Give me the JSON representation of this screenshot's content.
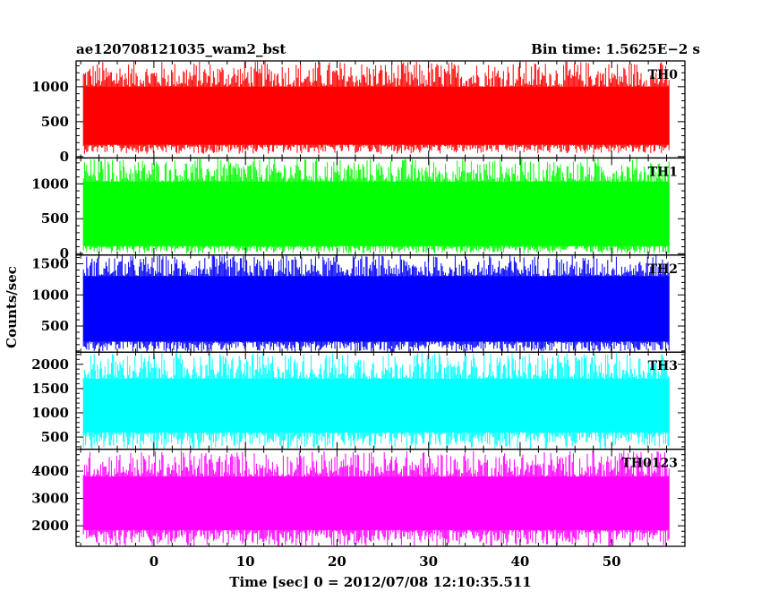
{
  "chart_data": {
    "type": "line",
    "title_left": "ae120708121035_wam2_bst",
    "title_right": "Bin time: 1.5625E−2 s",
    "xlabel": "Time [sec] 0 = 2012/07/08 12:10:35.511",
    "ylabel": "Counts/sec",
    "xlim": [
      -8.5,
      58
    ],
    "x_data_range": [
      -7.7,
      56.3
    ],
    "x_ticks": [
      0,
      10,
      20,
      30,
      40,
      50
    ],
    "x_tick_labels": [
      "0",
      "10",
      "20",
      "30",
      "40",
      "50"
    ],
    "panels": [
      {
        "name": "TH0",
        "color": "#ff0000",
        "ylim": [
          -20,
          1370
        ],
        "y_ticks": [
          0,
          500,
          1000
        ],
        "y_tick_labels": [
          "0",
          "500",
          "1000"
        ],
        "band": {
          "low": 170,
          "high": 1000,
          "min": 40,
          "max": 1370
        }
      },
      {
        "name": "TH1",
        "color": "#00ff00",
        "ylim": [
          -20,
          1370
        ],
        "y_ticks": [
          0,
          500,
          1000
        ],
        "y_tick_labels": [
          "0",
          "500",
          "1000"
        ],
        "band": {
          "low": 110,
          "high": 1030,
          "min": 0,
          "max": 1370
        }
      },
      {
        "name": "TH2",
        "color": "#0000ff",
        "ylim": [
          80,
          1640
        ],
        "y_ticks": [
          500,
          1000,
          1500
        ],
        "y_tick_labels": [
          "500",
          "1000",
          "1500"
        ],
        "band": {
          "low": 250,
          "high": 1300,
          "min": 80,
          "max": 1640
        }
      },
      {
        "name": "TH3",
        "color": "#00ffff",
        "ylim": [
          250,
          2250
        ],
        "y_ticks": [
          500,
          1000,
          1500,
          2000
        ],
        "y_tick_labels": [
          "500",
          "1000",
          "1500",
          "2000"
        ],
        "band": {
          "low": 600,
          "high": 1700,
          "min": 250,
          "max": 2250
        }
      },
      {
        "name": "TH0123",
        "color": "#ff00ff",
        "ylim": [
          1250,
          4800
        ],
        "y_ticks": [
          2000,
          3000,
          4000
        ],
        "y_tick_labels": [
          "2000",
          "3000",
          "4000"
        ],
        "band": {
          "low": 1850,
          "high": 3800,
          "min": 1250,
          "max": 4750
        }
      }
    ]
  }
}
